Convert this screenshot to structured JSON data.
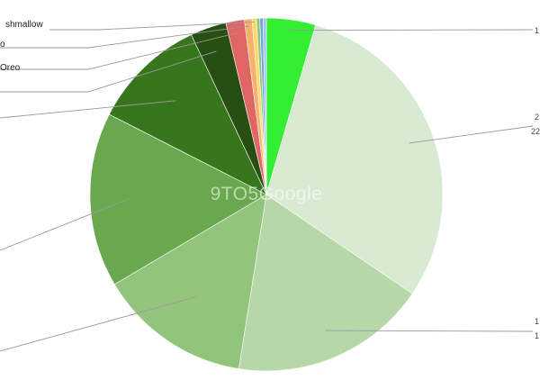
{
  "chart_data": {
    "type": "pie",
    "watermark": "9TO5Google",
    "start": "top",
    "direction": "clockwise",
    "legend": "none",
    "slices": [
      {
        "label": "",
        "value": 4.5,
        "color": "#33ee33"
      },
      {
        "label": "",
        "value": 30.0,
        "color": "#d9ead3"
      },
      {
        "label": "",
        "value": 18.0,
        "color": "#b6d7a8"
      },
      {
        "label": "",
        "value": 14.0,
        "color": "#93c47d"
      },
      {
        "label": "",
        "value": 16.0,
        "color": "#6aa84f"
      },
      {
        "label": "",
        "value": 10.5,
        "color": "#38761d"
      },
      {
        "label": "Oreo",
        "value": 3.3,
        "color": "#274e13"
      },
      {
        "label": "o",
        "value": 1.7,
        "color": "#e06666"
      },
      {
        "label": "shmallow",
        "value": 0.7,
        "color": "#f6b26b"
      },
      {
        "label": "",
        "value": 0.4,
        "color": "#ffd966"
      },
      {
        "label": "",
        "value": 0.3,
        "color": "#93c47d"
      },
      {
        "label": "",
        "value": 0.3,
        "color": "#6fa8dc"
      },
      {
        "label": "",
        "value": 0.3,
        "color": "#9fc5e8"
      }
    ],
    "right_labels": [
      "1",
      "2",
      "22",
      "1",
      "1"
    ]
  }
}
